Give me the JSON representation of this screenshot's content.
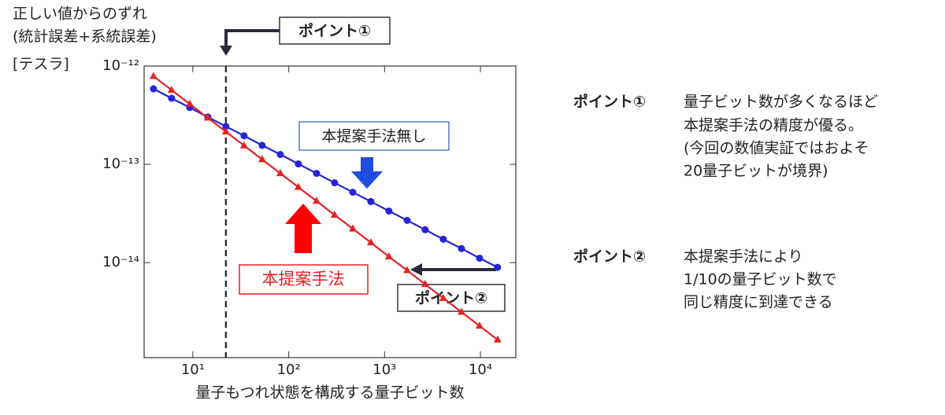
{
  "chart_data": {
    "type": "line",
    "y_label": [
      "正しい値からのずれ",
      "(統計誤差+系統誤差)",
      "[テスラ]"
    ],
    "x_label": "量子もつれ状態を構成する量子ビット数",
    "log_x": true,
    "log_y": true,
    "xlim": [
      3.1,
      23400
    ],
    "ylim": [
      1.08e-15,
      1e-12
    ],
    "xticks": [
      {
        "value": 10,
        "label": "10¹"
      },
      {
        "value": 100,
        "label": "10²"
      },
      {
        "value": 1000,
        "label": "10³"
      },
      {
        "value": 10000,
        "label": "10⁴"
      }
    ],
    "yticks": [
      {
        "value": 1e-14,
        "label": "10⁻¹⁴"
      },
      {
        "value": 1e-13,
        "label": "10⁻¹³"
      },
      {
        "value": 1e-12,
        "label": "10⁻¹²"
      }
    ],
    "x": [
      3.88,
      6.0,
      9.27,
      14.3,
      22.1,
      34.2,
      52.8,
      81.7,
      126,
      195,
      301,
      466,
      719,
      1110,
      1720,
      2650,
      4100,
      6340,
      9790,
      15100
    ],
    "series": [
      {
        "name": "本提案手法無し",
        "color": "#2424d8",
        "marker": "circle",
        "values": [
          5.86e-13,
          4.7e-13,
          3.78e-13,
          3.03e-13,
          2.43e-13,
          1.95e-13,
          1.56e-13,
          1.26e-13,
          1.01e-13,
          8.09e-14,
          6.49e-14,
          5.2e-14,
          4.18e-14,
          3.35e-14,
          2.69e-14,
          2.16e-14,
          1.73e-14,
          1.39e-14,
          1.11e-14,
          8.95e-15
        ]
      },
      {
        "name": "本提案手法",
        "color": "#e42222",
        "marker": "triangle",
        "values": [
          7.87e-13,
          5.69e-13,
          4.11e-13,
          2.97e-13,
          2.15e-13,
          1.55e-13,
          1.12e-13,
          8.09e-14,
          5.85e-14,
          4.23e-14,
          3.05e-14,
          2.21e-14,
          1.6e-14,
          1.15e-14,
          8.34e-15,
          6.02e-15,
          4.35e-15,
          3.14e-15,
          2.27e-15,
          1.64e-15
        ]
      }
    ],
    "vline_x": 22.1,
    "annotations": [
      "ポイント①",
      "ポイント②"
    ]
  },
  "notes": [
    {
      "label": "ポイント①",
      "lines": [
        "量子ビット数が多くなるほど",
        "本提案手法の精度が優る。",
        "(今回の数値実証ではおよそ",
        "20量子ビットが境界)"
      ]
    },
    {
      "label": "ポイント②",
      "lines": [
        "本提案手法により",
        "1/10の量子ビット数で",
        "同じ精度に到達できる"
      ]
    }
  ]
}
